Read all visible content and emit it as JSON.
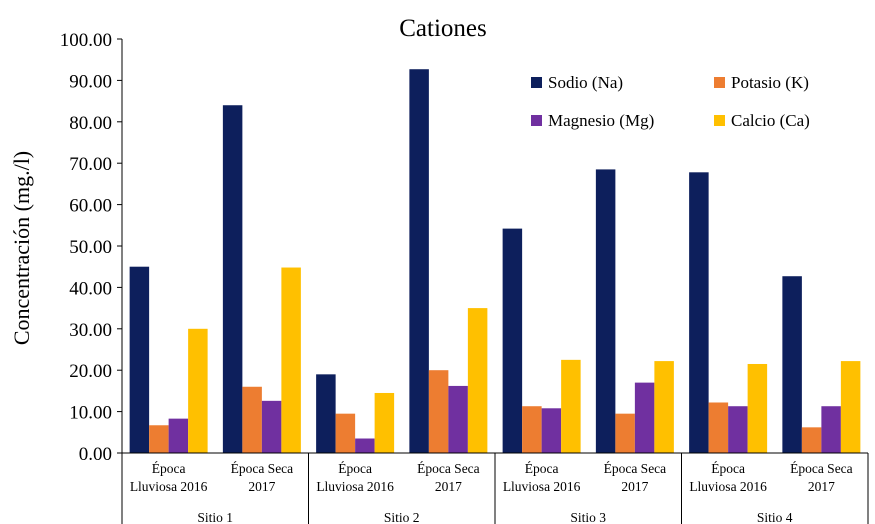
{
  "chart_data": {
    "type": "bar",
    "title": "Cationes",
    "ylabel": "Concentración (mg./l)",
    "xlabel": "",
    "ylim": [
      0,
      100
    ],
    "yticks": [
      "0.00",
      "10.00",
      "20.00",
      "30.00",
      "40.00",
      "50.00",
      "60.00",
      "70.00",
      "80.00",
      "90.00",
      "100.00"
    ],
    "grid": false,
    "legend_position": "top-right",
    "categories": [
      [
        "Época",
        "Lluviosa 2016"
      ],
      [
        "Época Seca",
        "2017"
      ],
      [
        "Época",
        "Lluviosa 2016"
      ],
      [
        "Época Seca",
        "2017"
      ],
      [
        "Época",
        "Lluviosa 2016"
      ],
      [
        "Época Seca",
        "2017"
      ],
      [
        "Época",
        "Lluviosa 2016"
      ],
      [
        "Época Seca",
        "2017"
      ]
    ],
    "groups": [
      "Sitio 1",
      "Sitio 2",
      "Sitio 3",
      "Sitio 4"
    ],
    "series": [
      {
        "name": "Sodio (Na)",
        "color": "#0d1f5c",
        "values": [
          45.0,
          84.0,
          19.0,
          92.7,
          54.2,
          68.5,
          67.8,
          42.7
        ]
      },
      {
        "name": "Potasio (K)",
        "color": "#ed7d31",
        "values": [
          6.7,
          16.0,
          9.5,
          20.0,
          11.3,
          9.5,
          12.2,
          6.2
        ]
      },
      {
        "name": "Magnesio (Mg)",
        "color": "#7030a0",
        "values": [
          8.3,
          12.6,
          3.5,
          16.2,
          10.8,
          17.0,
          11.3,
          11.3
        ]
      },
      {
        "name": "Calcio (Ca)",
        "color": "#ffc000",
        "values": [
          30.0,
          44.8,
          14.5,
          35.0,
          22.5,
          22.2,
          21.5,
          22.2
        ]
      }
    ]
  }
}
